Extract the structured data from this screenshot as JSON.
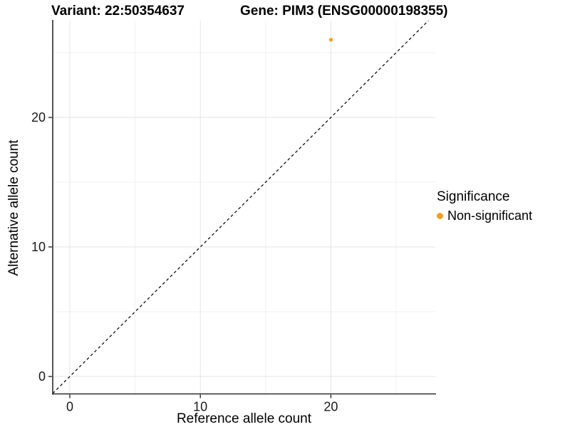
{
  "chart_data": {
    "type": "scatter",
    "title_left": "Variant: 22:50354637",
    "title_right": "Gene: PIM3 (ENSG00000198355)",
    "xlabel": "Reference allele count",
    "ylabel": "Alternative allele count",
    "xlim": [
      -1.3,
      27.5
    ],
    "ylim": [
      -1.35,
      27.5
    ],
    "x_ticks": [
      0,
      10,
      20
    ],
    "y_ticks": [
      0,
      10,
      20
    ],
    "x_minor": [
      5,
      15,
      25
    ],
    "y_minor": [
      5,
      15,
      25
    ],
    "grid": true,
    "points": [
      {
        "x": 20,
        "y": 26,
        "series": "Non-significant",
        "color": "#F9A11B"
      }
    ],
    "reference_line": {
      "slope": 1,
      "intercept": 0,
      "style": "dashed",
      "color": "#000000"
    },
    "legend": {
      "title": "Significance",
      "position": "right",
      "entries": [
        {
          "label": "Non-significant",
          "color": "#F9A11B"
        }
      ]
    },
    "colors": {
      "background": "#FFFFFF",
      "grid_major": "#E4E4E4",
      "grid_minor": "#F1F1F1",
      "axis_line": "#2B2B2B",
      "tick_text": "#1A1A1A",
      "title_text": "#000000"
    }
  }
}
